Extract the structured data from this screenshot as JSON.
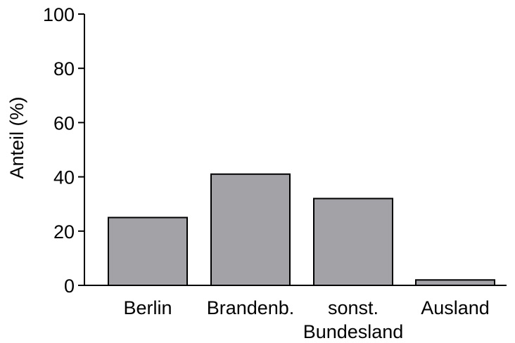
{
  "chart_data": {
    "type": "bar",
    "title": "",
    "xlabel": "",
    "ylabel": "Anteil (%)",
    "ylim": [
      0,
      100
    ],
    "yticks": [
      0,
      20,
      40,
      60,
      80,
      100
    ],
    "categories": [
      {
        "lines": [
          "Berlin"
        ]
      },
      {
        "lines": [
          "Brandenb."
        ]
      },
      {
        "lines": [
          "sonst.",
          "Bundesland"
        ]
      },
      {
        "lines": [
          "Ausland"
        ]
      }
    ],
    "values": [
      25,
      41,
      32,
      2
    ],
    "bar_color": "#a3a2a7",
    "grid": false,
    "legend": "none"
  }
}
